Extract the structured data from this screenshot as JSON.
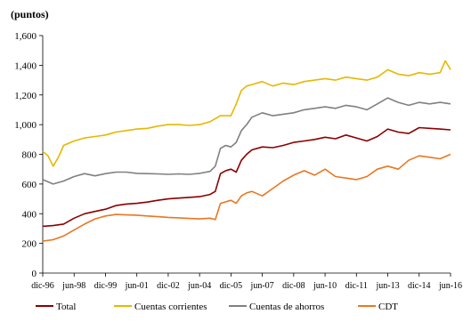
{
  "chart_data": {
    "type": "line",
    "ylabel": "(puntos)",
    "ylim": [
      0,
      1600
    ],
    "yticks": [
      0,
      200,
      400,
      600,
      800,
      1000,
      1200,
      1400,
      1600
    ],
    "ytick_labels": [
      "0",
      "200",
      "400",
      "600",
      "800",
      "1,000",
      "1,200",
      "1,400",
      "1,600"
    ],
    "x_start": "1996-12",
    "x_end": "2016-06",
    "xtick_labels": [
      "dic-96",
      "jun-98",
      "dic-99",
      "jun-01",
      "dic-02",
      "jun-04",
      "dic-05",
      "jun-07",
      "dic-08",
      "jun-10",
      "dic-11",
      "jun-13",
      "dic-14",
      "jun-16"
    ],
    "legend_position": "bottom",
    "grid": false,
    "series": [
      {
        "name": "Total",
        "color": "#8B0000",
        "points": [
          [
            "1996-12",
            315
          ],
          [
            "1997-06",
            320
          ],
          [
            "1997-12",
            330
          ],
          [
            "1998-06",
            370
          ],
          [
            "1998-12",
            400
          ],
          [
            "1999-06",
            415
          ],
          [
            "1999-12",
            430
          ],
          [
            "2000-06",
            455
          ],
          [
            "2000-12",
            465
          ],
          [
            "2001-06",
            470
          ],
          [
            "2001-12",
            478
          ],
          [
            "2002-06",
            490
          ],
          [
            "2002-12",
            500
          ],
          [
            "2003-06",
            505
          ],
          [
            "2003-12",
            510
          ],
          [
            "2004-06",
            515
          ],
          [
            "2004-12",
            530
          ],
          [
            "2005-03",
            550
          ],
          [
            "2005-06",
            670
          ],
          [
            "2005-09",
            690
          ],
          [
            "2005-12",
            700
          ],
          [
            "2006-03",
            680
          ],
          [
            "2006-06",
            760
          ],
          [
            "2006-09",
            800
          ],
          [
            "2006-12",
            830
          ],
          [
            "2007-06",
            850
          ],
          [
            "2007-12",
            845
          ],
          [
            "2008-06",
            860
          ],
          [
            "2008-12",
            880
          ],
          [
            "2009-06",
            890
          ],
          [
            "2009-12",
            900
          ],
          [
            "2010-06",
            915
          ],
          [
            "2010-12",
            905
          ],
          [
            "2011-06",
            930
          ],
          [
            "2011-12",
            910
          ],
          [
            "2012-06",
            890
          ],
          [
            "2012-12",
            920
          ],
          [
            "2013-06",
            970
          ],
          [
            "2013-12",
            950
          ],
          [
            "2014-06",
            940
          ],
          [
            "2014-12",
            980
          ],
          [
            "2015-06",
            975
          ],
          [
            "2015-12",
            970
          ],
          [
            "2016-06",
            965
          ]
        ]
      },
      {
        "name": "Cuentas corrientes",
        "color": "#E6B800",
        "points": [
          [
            "1996-12",
            820
          ],
          [
            "1997-03",
            790
          ],
          [
            "1997-06",
            720
          ],
          [
            "1997-09",
            780
          ],
          [
            "1997-12",
            860
          ],
          [
            "1998-06",
            890
          ],
          [
            "1998-12",
            910
          ],
          [
            "1999-06",
            920
          ],
          [
            "1999-12",
            930
          ],
          [
            "2000-06",
            950
          ],
          [
            "2000-12",
            960
          ],
          [
            "2001-06",
            970
          ],
          [
            "2001-12",
            975
          ],
          [
            "2002-06",
            990
          ],
          [
            "2002-12",
            1000
          ],
          [
            "2003-06",
            1000
          ],
          [
            "2003-12",
            995
          ],
          [
            "2004-06",
            1000
          ],
          [
            "2004-12",
            1020
          ],
          [
            "2005-06",
            1060
          ],
          [
            "2005-12",
            1060
          ],
          [
            "2006-03",
            1140
          ],
          [
            "2006-06",
            1230
          ],
          [
            "2006-09",
            1260
          ],
          [
            "2006-12",
            1270
          ],
          [
            "2007-06",
            1290
          ],
          [
            "2007-12",
            1260
          ],
          [
            "2008-06",
            1280
          ],
          [
            "2008-12",
            1270
          ],
          [
            "2009-06",
            1290
          ],
          [
            "2009-12",
            1300
          ],
          [
            "2010-06",
            1310
          ],
          [
            "2010-12",
            1300
          ],
          [
            "2011-06",
            1320
          ],
          [
            "2011-12",
            1310
          ],
          [
            "2012-06",
            1300
          ],
          [
            "2012-12",
            1320
          ],
          [
            "2013-06",
            1370
          ],
          [
            "2013-12",
            1340
          ],
          [
            "2014-06",
            1330
          ],
          [
            "2014-12",
            1350
          ],
          [
            "2015-06",
            1340
          ],
          [
            "2015-12",
            1350
          ],
          [
            "2016-03",
            1430
          ],
          [
            "2016-06",
            1370
          ]
        ]
      },
      {
        "name": "Cuentas de ahorros",
        "color": "#808080",
        "points": [
          [
            "1996-12",
            630
          ],
          [
            "1997-06",
            600
          ],
          [
            "1997-12",
            620
          ],
          [
            "1998-06",
            650
          ],
          [
            "1998-12",
            670
          ],
          [
            "1999-06",
            655
          ],
          [
            "1999-12",
            670
          ],
          [
            "2000-06",
            680
          ],
          [
            "2000-12",
            680
          ],
          [
            "2001-06",
            672
          ],
          [
            "2001-12",
            670
          ],
          [
            "2002-06",
            668
          ],
          [
            "2002-12",
            665
          ],
          [
            "2003-06",
            668
          ],
          [
            "2003-12",
            665
          ],
          [
            "2004-06",
            672
          ],
          [
            "2004-12",
            685
          ],
          [
            "2005-03",
            720
          ],
          [
            "2005-06",
            840
          ],
          [
            "2005-09",
            860
          ],
          [
            "2005-12",
            850
          ],
          [
            "2006-03",
            880
          ],
          [
            "2006-06",
            960
          ],
          [
            "2006-09",
            1000
          ],
          [
            "2006-12",
            1050
          ],
          [
            "2007-06",
            1080
          ],
          [
            "2007-12",
            1060
          ],
          [
            "2008-06",
            1070
          ],
          [
            "2008-12",
            1080
          ],
          [
            "2009-06",
            1100
          ],
          [
            "2009-12",
            1110
          ],
          [
            "2010-06",
            1120
          ],
          [
            "2010-12",
            1110
          ],
          [
            "2011-06",
            1130
          ],
          [
            "2011-12",
            1120
          ],
          [
            "2012-06",
            1100
          ],
          [
            "2012-12",
            1140
          ],
          [
            "2013-06",
            1180
          ],
          [
            "2013-12",
            1150
          ],
          [
            "2014-06",
            1130
          ],
          [
            "2014-12",
            1150
          ],
          [
            "2015-06",
            1140
          ],
          [
            "2015-12",
            1150
          ],
          [
            "2016-06",
            1140
          ]
        ]
      },
      {
        "name": "CDT",
        "color": "#E87722",
        "points": [
          [
            "1996-12",
            215
          ],
          [
            "1997-06",
            225
          ],
          [
            "1997-12",
            250
          ],
          [
            "1998-06",
            290
          ],
          [
            "1998-12",
            330
          ],
          [
            "1999-06",
            365
          ],
          [
            "1999-12",
            385
          ],
          [
            "2000-06",
            395
          ],
          [
            "2000-12",
            392
          ],
          [
            "2001-06",
            390
          ],
          [
            "2001-12",
            385
          ],
          [
            "2002-06",
            380
          ],
          [
            "2002-12",
            375
          ],
          [
            "2003-06",
            372
          ],
          [
            "2003-12",
            368
          ],
          [
            "2004-06",
            365
          ],
          [
            "2004-12",
            370
          ],
          [
            "2005-03",
            360
          ],
          [
            "2005-06",
            470
          ],
          [
            "2005-09",
            480
          ],
          [
            "2005-12",
            490
          ],
          [
            "2006-03",
            470
          ],
          [
            "2006-06",
            520
          ],
          [
            "2006-09",
            540
          ],
          [
            "2006-12",
            550
          ],
          [
            "2007-06",
            520
          ],
          [
            "2007-12",
            570
          ],
          [
            "2008-06",
            620
          ],
          [
            "2008-12",
            660
          ],
          [
            "2009-06",
            690
          ],
          [
            "2009-12",
            660
          ],
          [
            "2010-06",
            700
          ],
          [
            "2010-12",
            650
          ],
          [
            "2011-06",
            640
          ],
          [
            "2011-12",
            630
          ],
          [
            "2012-06",
            650
          ],
          [
            "2012-12",
            700
          ],
          [
            "2013-06",
            720
          ],
          [
            "2013-12",
            700
          ],
          [
            "2014-06",
            760
          ],
          [
            "2014-12",
            790
          ],
          [
            "2015-06",
            780
          ],
          [
            "2015-12",
            770
          ],
          [
            "2016-06",
            800
          ]
        ]
      }
    ]
  }
}
